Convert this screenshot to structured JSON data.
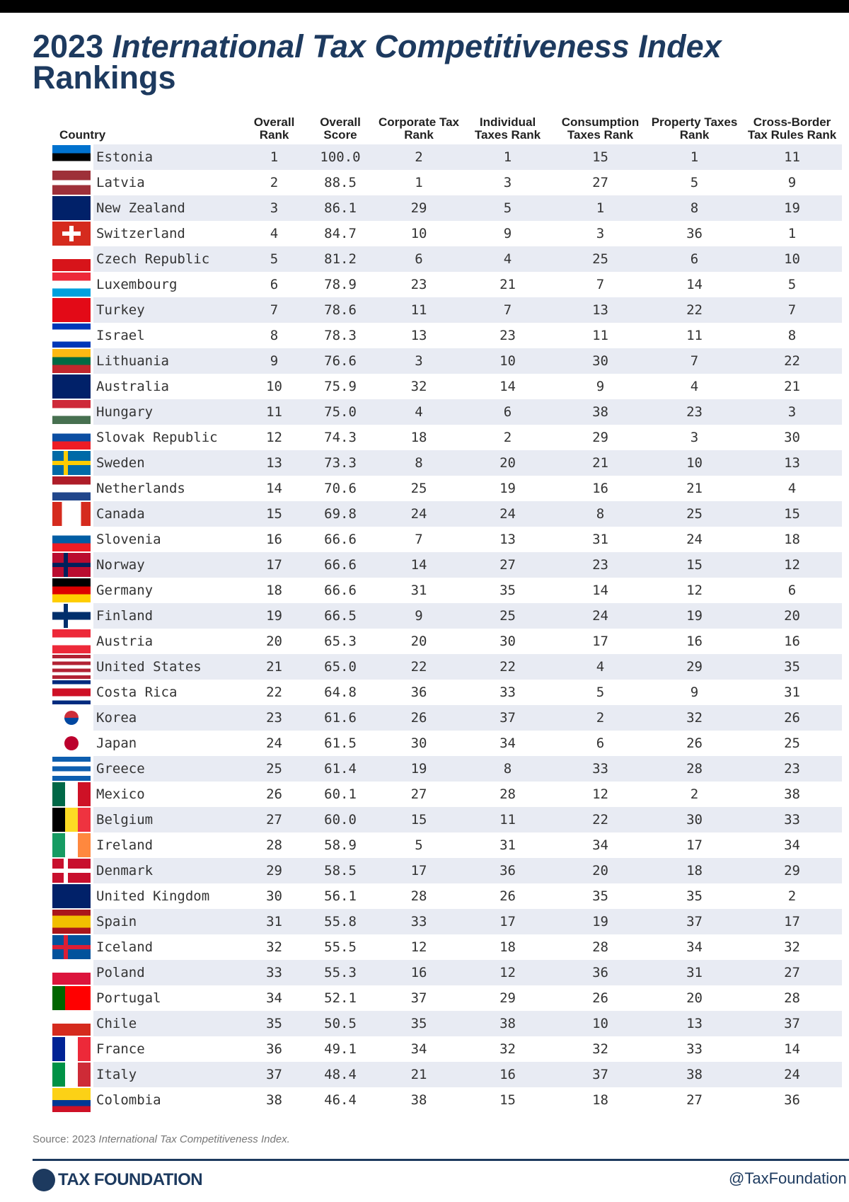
{
  "title": {
    "year": "2023",
    "italic": "International Tax Competitiveness Index",
    "rest": "Rankings"
  },
  "table": {
    "headers": [
      "Country",
      "Overall Rank",
      "Overall Score",
      "Corporate Tax Rank",
      "Individual Taxes Rank",
      "Consumption Taxes Rank",
      "Property Taxes Rank",
      "Cross-Border Tax Rules Rank"
    ],
    "rows": [
      [
        "Estonia",
        1,
        "100.0",
        2,
        1,
        15,
        1,
        11
      ],
      [
        "Latvia",
        2,
        "88.5",
        1,
        3,
        27,
        5,
        9
      ],
      [
        "New Zealand",
        3,
        "86.1",
        29,
        5,
        1,
        8,
        19
      ],
      [
        "Switzerland",
        4,
        "84.7",
        10,
        9,
        3,
        36,
        1
      ],
      [
        "Czech Republic",
        5,
        "81.2",
        6,
        4,
        25,
        6,
        10
      ],
      [
        "Luxembourg",
        6,
        "78.9",
        23,
        21,
        7,
        14,
        5
      ],
      [
        "Turkey",
        7,
        "78.6",
        11,
        7,
        13,
        22,
        7
      ],
      [
        "Israel",
        8,
        "78.3",
        13,
        23,
        11,
        11,
        8
      ],
      [
        "Lithuania",
        9,
        "76.6",
        3,
        10,
        30,
        7,
        22
      ],
      [
        "Australia",
        10,
        "75.9",
        32,
        14,
        9,
        4,
        21
      ],
      [
        "Hungary",
        11,
        "75.0",
        4,
        6,
        38,
        23,
        3
      ],
      [
        "Slovak Republic",
        12,
        "74.3",
        18,
        2,
        29,
        3,
        30
      ],
      [
        "Sweden",
        13,
        "73.3",
        8,
        20,
        21,
        10,
        13
      ],
      [
        "Netherlands",
        14,
        "70.6",
        25,
        19,
        16,
        21,
        4
      ],
      [
        "Canada",
        15,
        "69.8",
        24,
        24,
        8,
        25,
        15
      ],
      [
        "Slovenia",
        16,
        "66.6",
        7,
        13,
        31,
        24,
        18
      ],
      [
        "Norway",
        17,
        "66.6",
        14,
        27,
        23,
        15,
        12
      ],
      [
        "Germany",
        18,
        "66.6",
        31,
        35,
        14,
        12,
        6
      ],
      [
        "Finland",
        19,
        "66.5",
        9,
        25,
        24,
        19,
        20
      ],
      [
        "Austria",
        20,
        "65.3",
        20,
        30,
        17,
        16,
        16
      ],
      [
        "United States",
        21,
        "65.0",
        22,
        22,
        4,
        29,
        35
      ],
      [
        "Costa Rica",
        22,
        "64.8",
        36,
        33,
        5,
        9,
        31
      ],
      [
        "Korea",
        23,
        "61.6",
        26,
        37,
        2,
        32,
        26
      ],
      [
        "Japan",
        24,
        "61.5",
        30,
        34,
        6,
        26,
        25
      ],
      [
        "Greece",
        25,
        "61.4",
        19,
        8,
        33,
        28,
        23
      ],
      [
        "Mexico",
        26,
        "60.1",
        27,
        28,
        12,
        2,
        38
      ],
      [
        "Belgium",
        27,
        "60.0",
        15,
        11,
        22,
        30,
        33
      ],
      [
        "Ireland",
        28,
        "58.9",
        5,
        31,
        34,
        17,
        34
      ],
      [
        "Denmark",
        29,
        "58.5",
        17,
        36,
        20,
        18,
        29
      ],
      [
        "United Kingdom",
        30,
        "56.1",
        28,
        26,
        35,
        35,
        2
      ],
      [
        "Spain",
        31,
        "55.8",
        33,
        17,
        19,
        37,
        17
      ],
      [
        "Iceland",
        32,
        "55.5",
        12,
        18,
        28,
        34,
        32
      ],
      [
        "Poland",
        33,
        "55.3",
        16,
        12,
        36,
        31,
        27
      ],
      [
        "Portugal",
        34,
        "52.1",
        37,
        29,
        26,
        20,
        28
      ],
      [
        "Chile",
        35,
        "50.5",
        35,
        38,
        10,
        13,
        37
      ],
      [
        "France",
        36,
        "49.1",
        34,
        32,
        32,
        33,
        14
      ],
      [
        "Italy",
        37,
        "48.4",
        21,
        16,
        37,
        38,
        24
      ],
      [
        "Colombia",
        38,
        "46.4",
        38,
        15,
        18,
        27,
        36
      ]
    ]
  },
  "source": {
    "prefix": "Source: 2023",
    "italic": "International Tax Competitiveness Index."
  },
  "footer": {
    "logo": "TAX FOUNDATION",
    "handle": "@TaxFoundation"
  }
}
